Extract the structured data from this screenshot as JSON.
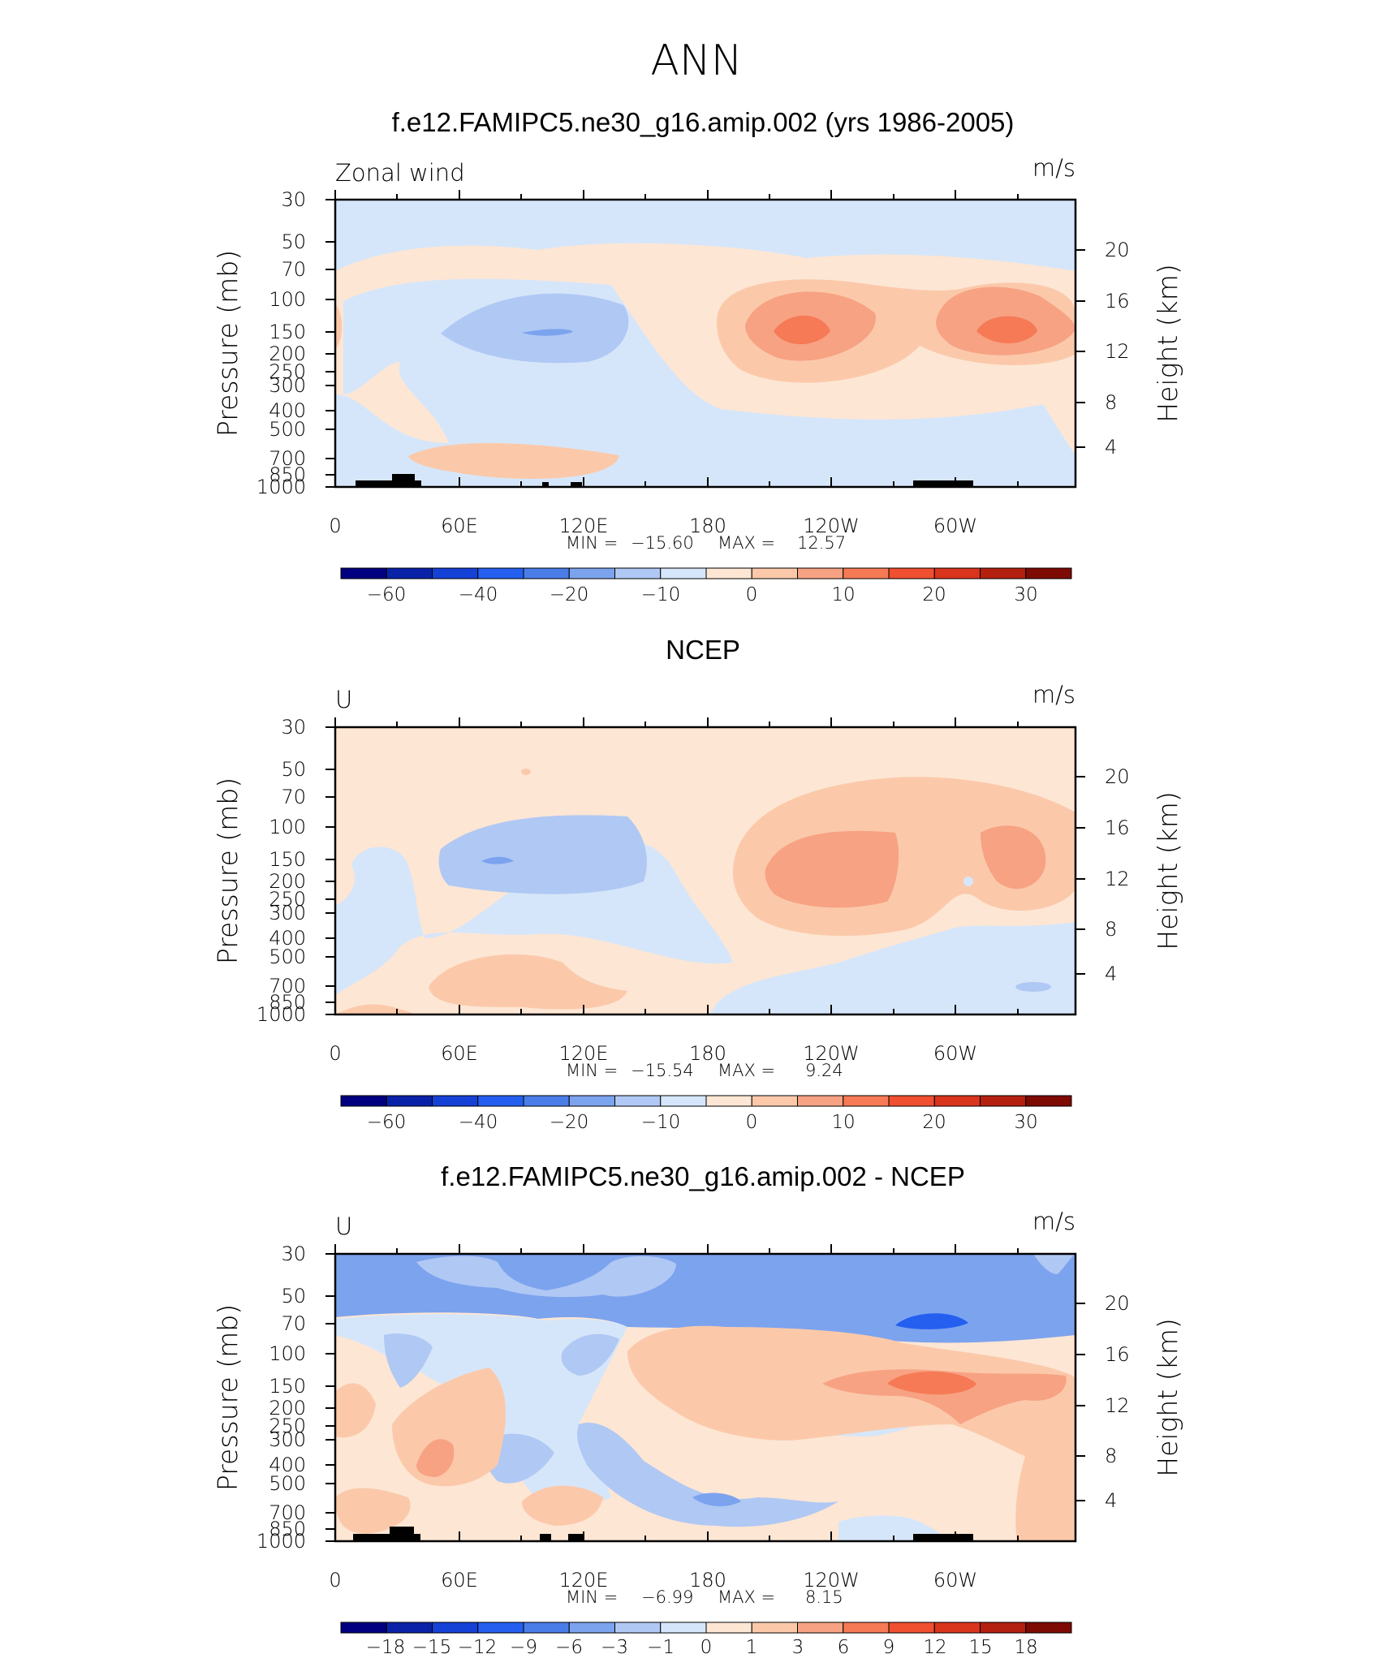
{
  "figure": {
    "title": "ANN"
  },
  "colors": {
    "zonal_scale": [
      "#000080",
      "#0a22a8",
      "#1541d6",
      "#245ff0",
      "#4a7de8",
      "#7ca3ee",
      "#b0c8f4",
      "#d6e6fa",
      "#fde6d4",
      "#fbc9aa",
      "#f7a283",
      "#f57a55",
      "#f0502f",
      "#d9341c",
      "#b3200f",
      "#7e0a04"
    ],
    "diff_scale": [
      "#000080",
      "#0a22a8",
      "#1541d6",
      "#245ff0",
      "#4a7de8",
      "#7ca3ee",
      "#b0c8f4",
      "#d6e6fa",
      "#fde6d4",
      "#fbc9aa",
      "#f7a283",
      "#f57a55",
      "#f0502f",
      "#d9341c",
      "#b3200f",
      "#7e0a04"
    ],
    "topography": "#000000"
  },
  "chart_data": [
    {
      "type": "contour",
      "title": "f.e12.FAMIPC5.ne30_g16.amip.002 (yrs 1986-2005)",
      "left_label": "Zonal wind",
      "units": "m/s",
      "ylabel": "Pressure (mb)",
      "ylabel_right": "Height (km)",
      "x_ticks": [
        "0",
        "60E",
        "120E",
        "180",
        "120W",
        "60W"
      ],
      "y_ticks": [
        "30",
        "50",
        "70",
        "100",
        "150",
        "200",
        "250",
        "300",
        "400",
        "500",
        "700",
        "850",
        "1000"
      ],
      "y_right_ticks": [
        "20",
        "16",
        "12",
        "8",
        "4"
      ],
      "stats": {
        "min_label": "MIN =",
        "min": "−15.60",
        "max_label": "MAX =",
        "max": "12.57"
      },
      "colorbar_labels": [
        "−60",
        "−40",
        "−20",
        "−10",
        "0",
        "10",
        "20",
        "30"
      ]
    },
    {
      "type": "contour",
      "title": "NCEP",
      "left_label": "U",
      "units": "m/s",
      "ylabel": "Pressure (mb)",
      "ylabel_right": "Height (km)",
      "x_ticks": [
        "0",
        "60E",
        "120E",
        "180",
        "120W",
        "60W"
      ],
      "y_ticks": [
        "30",
        "50",
        "70",
        "100",
        "150",
        "200",
        "250",
        "300",
        "400",
        "500",
        "700",
        "850",
        "1000"
      ],
      "y_right_ticks": [
        "20",
        "16",
        "12",
        "8",
        "4"
      ],
      "stats": {
        "min_label": "MIN =",
        "min": "−15.54",
        "max_label": "MAX =",
        "max": "9.24"
      },
      "colorbar_labels": [
        "−60",
        "−40",
        "−20",
        "−10",
        "0",
        "10",
        "20",
        "30"
      ]
    },
    {
      "type": "contour",
      "title": "f.e12.FAMIPC5.ne30_g16.amip.002 - NCEP",
      "left_label": "U",
      "units": "m/s",
      "ylabel": "Pressure (mb)",
      "ylabel_right": "Height (km)",
      "x_ticks": [
        "0",
        "60E",
        "120E",
        "180",
        "120W",
        "60W"
      ],
      "y_ticks": [
        "30",
        "50",
        "70",
        "100",
        "150",
        "200",
        "250",
        "300",
        "400",
        "500",
        "700",
        "850",
        "1000"
      ],
      "y_right_ticks": [
        "20",
        "16",
        "12",
        "8",
        "4"
      ],
      "stats": {
        "min_label": "MIN =",
        "min": "−6.99",
        "max_label": "MAX =",
        "max": "8.15"
      },
      "colorbar_labels": [
        "−18",
        "−15",
        "−12",
        "−9",
        "−6",
        "−3",
        "−1",
        "0",
        "1",
        "3",
        "6",
        "9",
        "12",
        "15",
        "18"
      ]
    }
  ]
}
